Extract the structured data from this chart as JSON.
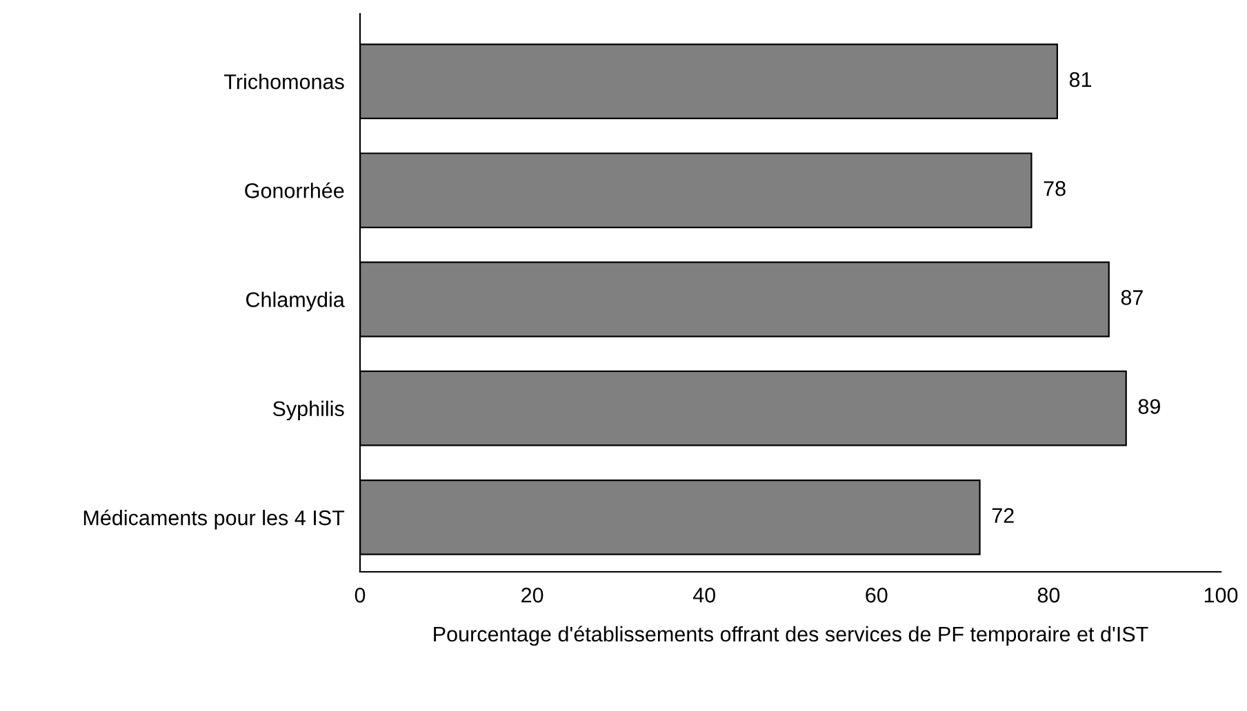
{
  "chart_data": {
    "type": "bar",
    "orientation": "horizontal",
    "categories": [
      "Trichomonas",
      "Gonorrhée",
      "Chlamydia",
      "Syphilis",
      "Médicaments pour les 4 IST"
    ],
    "values": [
      81,
      78,
      87,
      89,
      72
    ],
    "color": "#808080",
    "xlabel": "Pourcentage d'établissements offrant des services de PF temporaire et d'IST",
    "xlim": [
      0,
      100
    ],
    "xticks": [
      0,
      20,
      40,
      60,
      80,
      100
    ],
    "data_labels": true,
    "grid": false,
    "legend": false
  }
}
